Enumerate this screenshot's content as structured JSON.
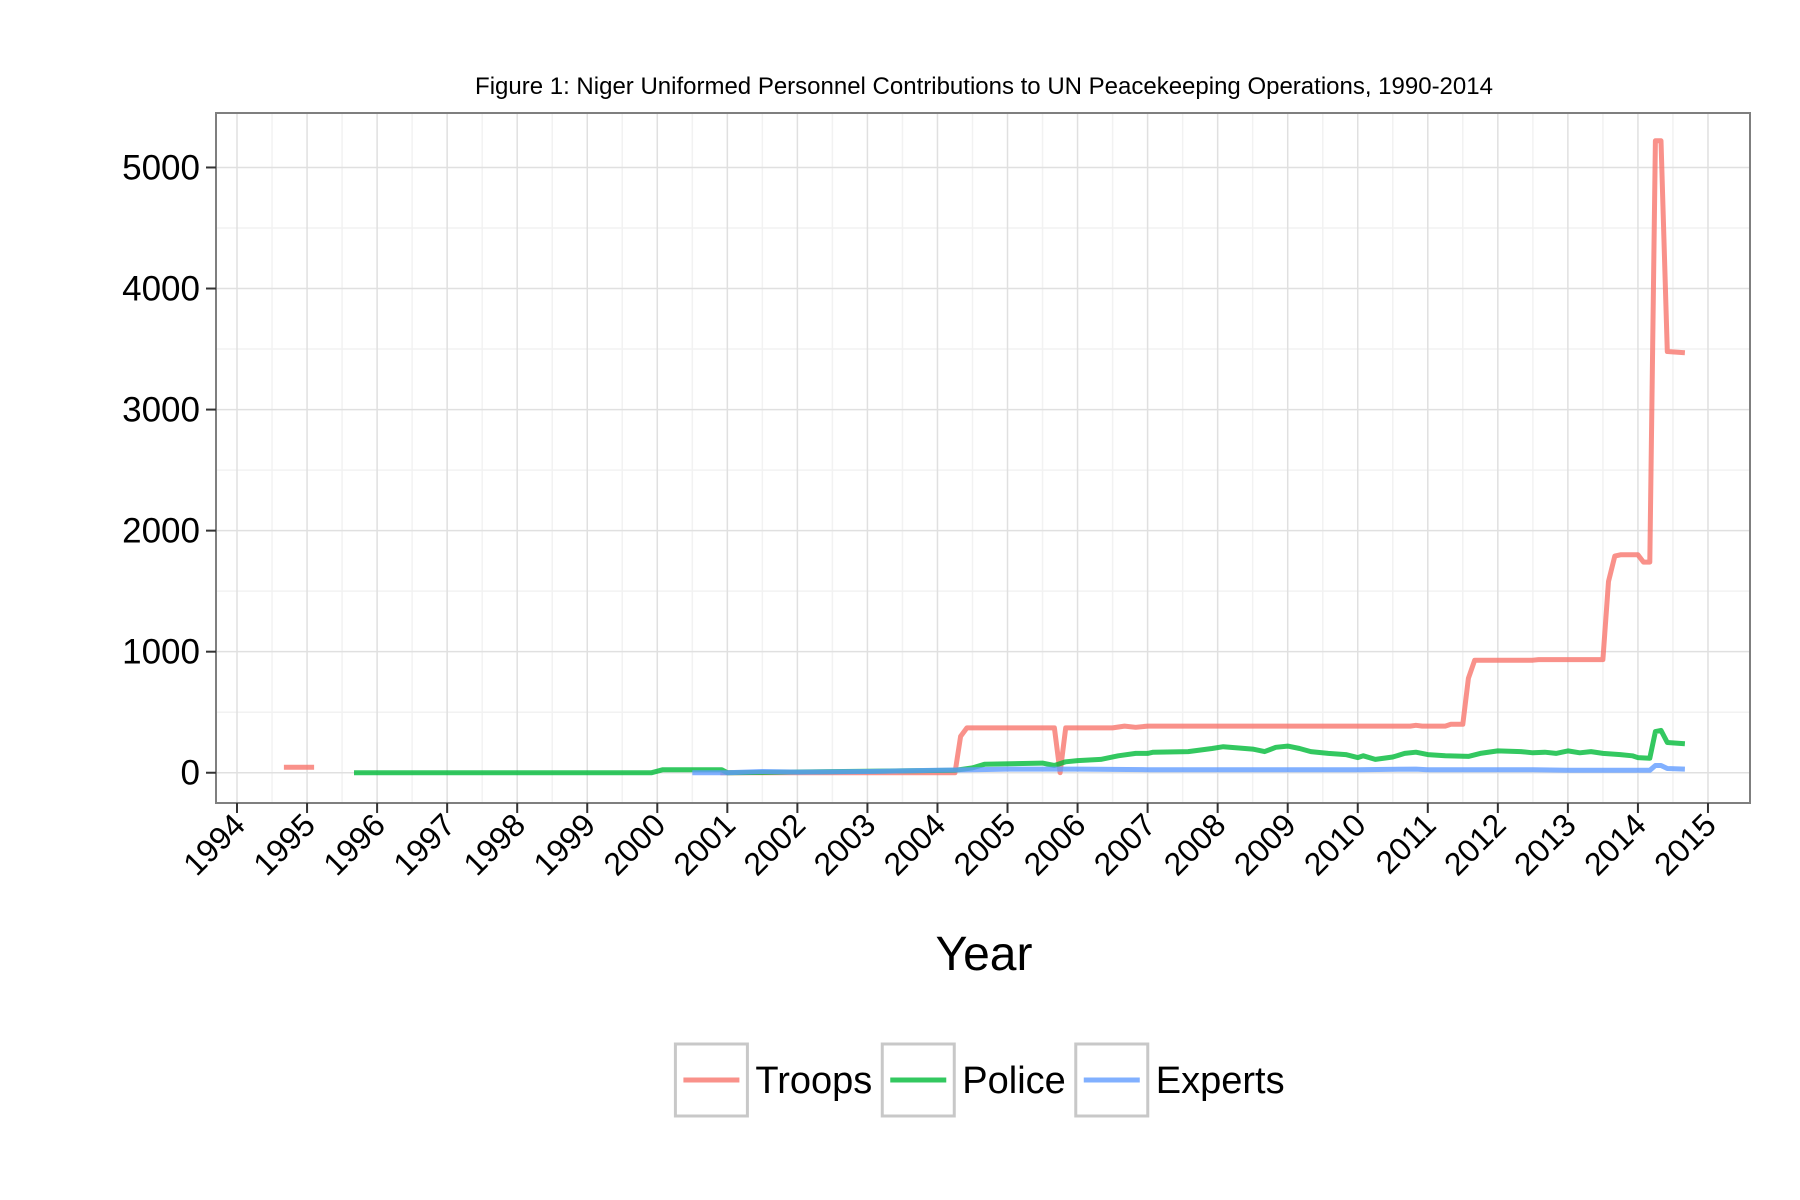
{
  "chart_data": {
    "type": "line",
    "title": "Figure 1: Niger Uniformed Personnel Contributions to UN Peacekeeping Operations, 1990-2014",
    "xlabel": "Year",
    "ylabel": "",
    "xlim": [
      1993.7,
      2015.6
    ],
    "ylim": [
      -250,
      5450
    ],
    "x_ticks": [
      1994,
      1995,
      1996,
      1997,
      1998,
      1999,
      2000,
      2001,
      2002,
      2003,
      2004,
      2005,
      2006,
      2007,
      2008,
      2009,
      2010,
      2011,
      2012,
      2013,
      2014,
      2015
    ],
    "x_tick_labels": [
      "1994",
      "1995",
      "1996",
      "1997",
      "1998",
      "1999",
      "2000",
      "2001",
      "2002",
      "2003",
      "2004",
      "2005",
      "2006",
      "2007",
      "2008",
      "2009",
      "2010",
      "2011",
      "2012",
      "2013",
      "2014",
      "2015"
    ],
    "y_ticks": [
      0,
      1000,
      2000,
      3000,
      4000,
      5000
    ],
    "y_tick_labels": [
      "0",
      "1000",
      "2000",
      "3000",
      "4000",
      "5000"
    ],
    "grid": true,
    "legend_position": "bottom",
    "series": [
      {
        "name": "Troops",
        "color": "#F8766D",
        "segments": [
          [
            [
              1994.67,
              45
            ],
            [
              1995.1,
              45
            ]
          ],
          [
            [
              2000.9,
              0
            ],
            [
              2004.25,
              0
            ],
            [
              2004.33,
              300
            ],
            [
              2004.42,
              370
            ],
            [
              2005.67,
              370
            ],
            [
              2005.75,
              0
            ],
            [
              2005.83,
              370
            ],
            [
              2006.5,
              370
            ],
            [
              2006.67,
              385
            ],
            [
              2006.83,
              375
            ],
            [
              2007.0,
              385
            ],
            [
              2008.0,
              385
            ],
            [
              2010.75,
              385
            ],
            [
              2010.83,
              392
            ],
            [
              2010.92,
              385
            ],
            [
              2011.0,
              385
            ],
            [
              2011.25,
              385
            ],
            [
              2011.33,
              400
            ],
            [
              2011.5,
              400
            ],
            [
              2011.58,
              780
            ],
            [
              2011.67,
              930
            ],
            [
              2012.0,
              930
            ],
            [
              2012.5,
              930
            ],
            [
              2012.58,
              935
            ],
            [
              2013.0,
              935
            ],
            [
              2013.5,
              935
            ],
            [
              2013.58,
              1580
            ],
            [
              2013.67,
              1790
            ],
            [
              2013.75,
              1800
            ],
            [
              2014.0,
              1800
            ],
            [
              2014.08,
              1740
            ],
            [
              2014.17,
              1740
            ],
            [
              2014.25,
              5220
            ],
            [
              2014.33,
              5220
            ],
            [
              2014.42,
              3480
            ],
            [
              2014.67,
              3470
            ]
          ]
        ]
      },
      {
        "name": "Police",
        "color": "#00BA38",
        "segments": [
          [
            [
              1995.67,
              0
            ],
            [
              1999.92,
              0
            ],
            [
              2000.08,
              25
            ],
            [
              2000.92,
              25
            ],
            [
              2001.0,
              0
            ],
            [
              2004.25,
              20
            ],
            [
              2004.5,
              40
            ],
            [
              2004.67,
              70
            ],
            [
              2005.5,
              80
            ],
            [
              2005.67,
              60
            ],
            [
              2005.83,
              90
            ],
            [
              2006.0,
              100
            ],
            [
              2006.33,
              110
            ],
            [
              2006.58,
              140
            ],
            [
              2006.83,
              160
            ],
            [
              2007.0,
              160
            ],
            [
              2007.08,
              170
            ],
            [
              2007.58,
              175
            ],
            [
              2007.92,
              200
            ],
            [
              2008.08,
              215
            ],
            [
              2008.5,
              195
            ],
            [
              2008.67,
              175
            ],
            [
              2008.83,
              210
            ],
            [
              2009.0,
              220
            ],
            [
              2009.17,
              200
            ],
            [
              2009.33,
              175
            ],
            [
              2009.58,
              160
            ],
            [
              2009.83,
              150
            ],
            [
              2010.0,
              125
            ],
            [
              2010.08,
              140
            ],
            [
              2010.25,
              110
            ],
            [
              2010.5,
              130
            ],
            [
              2010.67,
              160
            ],
            [
              2010.83,
              170
            ],
            [
              2011.0,
              150
            ],
            [
              2011.25,
              140
            ],
            [
              2011.58,
              135
            ],
            [
              2011.75,
              160
            ],
            [
              2012.0,
              180
            ],
            [
              2012.33,
              175
            ],
            [
              2012.5,
              165
            ],
            [
              2012.67,
              170
            ],
            [
              2012.83,
              160
            ],
            [
              2013.0,
              180
            ],
            [
              2013.17,
              165
            ],
            [
              2013.33,
              175
            ],
            [
              2013.5,
              160
            ],
            [
              2013.75,
              150
            ],
            [
              2013.92,
              140
            ],
            [
              2014.0,
              125
            ],
            [
              2014.17,
              120
            ],
            [
              2014.25,
              340
            ],
            [
              2014.33,
              350
            ],
            [
              2014.42,
              250
            ],
            [
              2014.67,
              240
            ]
          ]
        ]
      },
      {
        "name": "Experts",
        "color": "#619CFF",
        "segments": [
          [
            [
              2000.5,
              0
            ],
            [
              2001.0,
              0
            ],
            [
              2001.5,
              10
            ],
            [
              2002.0,
              5
            ],
            [
              2003.0,
              10
            ],
            [
              2003.5,
              15
            ],
            [
              2004.0,
              20
            ],
            [
              2004.5,
              25
            ],
            [
              2005.0,
              30
            ],
            [
              2006.0,
              30
            ],
            [
              2007.0,
              25
            ],
            [
              2008.0,
              25
            ],
            [
              2009.0,
              25
            ],
            [
              2010.0,
              25
            ],
            [
              2010.83,
              30
            ],
            [
              2011.0,
              25
            ],
            [
              2012.0,
              25
            ],
            [
              2012.5,
              25
            ],
            [
              2013.0,
              20
            ],
            [
              2014.0,
              20
            ],
            [
              2014.17,
              20
            ],
            [
              2014.25,
              60
            ],
            [
              2014.33,
              60
            ],
            [
              2014.42,
              35
            ],
            [
              2014.67,
              30
            ]
          ]
        ]
      }
    ]
  }
}
